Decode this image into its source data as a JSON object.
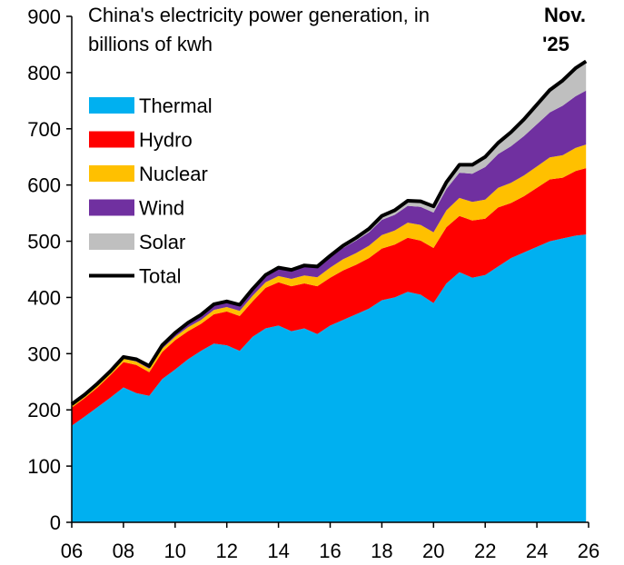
{
  "chart_data": {
    "type": "area",
    "title_lines": [
      "China's electricity power generation, in",
      "billions of kwh"
    ],
    "annotation_lines": [
      "Nov.",
      "'25"
    ],
    "xlabel": "",
    "ylabel": "",
    "xlim": [
      2006,
      2026
    ],
    "ylim": [
      0,
      900
    ],
    "x_ticks": [
      2006,
      2008,
      2010,
      2012,
      2014,
      2016,
      2018,
      2020,
      2022,
      2024,
      2026
    ],
    "x_tick_labels": [
      "06",
      "08",
      "10",
      "12",
      "14",
      "16",
      "18",
      "20",
      "22",
      "24",
      "26"
    ],
    "y_ticks": [
      0,
      100,
      200,
      300,
      400,
      500,
      600,
      700,
      800,
      900
    ],
    "y_tick_labels": [
      "0",
      "100",
      "200",
      "300",
      "400",
      "500",
      "600",
      "700",
      "800",
      "900"
    ],
    "grid": false,
    "legend_position": "top-left",
    "legend": [
      {
        "label": "Thermal",
        "color": "#00B0F0",
        "kind": "area"
      },
      {
        "label": "Hydro",
        "color": "#FF0000",
        "kind": "area"
      },
      {
        "label": "Nuclear",
        "color": "#FFC000",
        "kind": "area"
      },
      {
        "label": "Wind",
        "color": "#7030A0",
        "kind": "area"
      },
      {
        "label": "Solar",
        "color": "#BFBFBF",
        "kind": "area"
      },
      {
        "label": "Total",
        "color": "#000000",
        "kind": "line"
      }
    ],
    "x": [
      2006,
      2006.5,
      2007,
      2007.5,
      2008,
      2008.5,
      2009,
      2009.5,
      2010,
      2010.5,
      2011,
      2011.5,
      2012,
      2012.5,
      2013,
      2013.5,
      2014,
      2014.5,
      2015,
      2015.5,
      2016,
      2016.5,
      2017,
      2017.5,
      2018,
      2018.5,
      2019,
      2019.5,
      2020,
      2020.5,
      2021,
      2021.5,
      2022,
      2022.5,
      2023,
      2023.5,
      2024,
      2024.5,
      2025,
      2025.5,
      2025.9
    ],
    "series": [
      {
        "name": "Thermal",
        "color": "#00B0F0",
        "values": [
          172,
          188,
          205,
          222,
          240,
          230,
          225,
          255,
          272,
          290,
          305,
          318,
          315,
          305,
          330,
          345,
          350,
          340,
          345,
          335,
          350,
          360,
          370,
          380,
          395,
          400,
          410,
          405,
          390,
          425,
          445,
          435,
          440,
          455,
          470,
          480,
          490,
          500,
          505,
          510,
          512
        ]
      },
      {
        "name": "Hydro",
        "color": "#FF0000",
        "values": [
          32,
          33,
          35,
          40,
          45,
          50,
          42,
          48,
          52,
          50,
          48,
          52,
          60,
          62,
          63,
          72,
          77,
          80,
          80,
          85,
          85,
          88,
          88,
          90,
          92,
          94,
          96,
          96,
          98,
          100,
          100,
          102,
          100,
          105,
          98,
          100,
          105,
          110,
          108,
          115,
          118
        ]
      },
      {
        "name": "Nuclear",
        "color": "#FFC000",
        "values": [
          5,
          5,
          5,
          5,
          6,
          6,
          6,
          6,
          6,
          7,
          7,
          8,
          8,
          9,
          10,
          10,
          11,
          13,
          14,
          16,
          18,
          20,
          21,
          22,
          24,
          25,
          27,
          28,
          28,
          30,
          32,
          33,
          34,
          35,
          36,
          37,
          38,
          39,
          40,
          41,
          42
        ]
      },
      {
        "name": "Wind",
        "color": "#7030A0",
        "values": [
          1,
          1,
          2,
          2,
          3,
          4,
          5,
          6,
          7,
          8,
          9,
          10,
          10,
          11,
          12,
          13,
          14,
          15,
          16,
          17,
          18,
          20,
          22,
          24,
          27,
          28,
          30,
          32,
          35,
          38,
          45,
          50,
          58,
          60,
          65,
          70,
          75,
          80,
          88,
          92,
          96
        ]
      },
      {
        "name": "Solar",
        "color": "#BFBFBF",
        "values": [
          0,
          0,
          0,
          0,
          0,
          0,
          0,
          0,
          0,
          0,
          0,
          0,
          0,
          0,
          0,
          0,
          1,
          1,
          2,
          2,
          3,
          4,
          5,
          6,
          7,
          8,
          9,
          10,
          11,
          12,
          14,
          16,
          18,
          20,
          25,
          30,
          35,
          40,
          45,
          50,
          52
        ]
      },
      {
        "name": "Total",
        "color": "#000000",
        "values": [
          210,
          227,
          247,
          269,
          294,
          290,
          278,
          315,
          337,
          355,
          369,
          388,
          393,
          387,
          415,
          440,
          453,
          449,
          457,
          455,
          474,
          492,
          506,
          522,
          545,
          555,
          572,
          571,
          562,
          605,
          636,
          636,
          650,
          675,
          694,
          717,
          743,
          769,
          786,
          808,
          820
        ]
      }
    ]
  }
}
